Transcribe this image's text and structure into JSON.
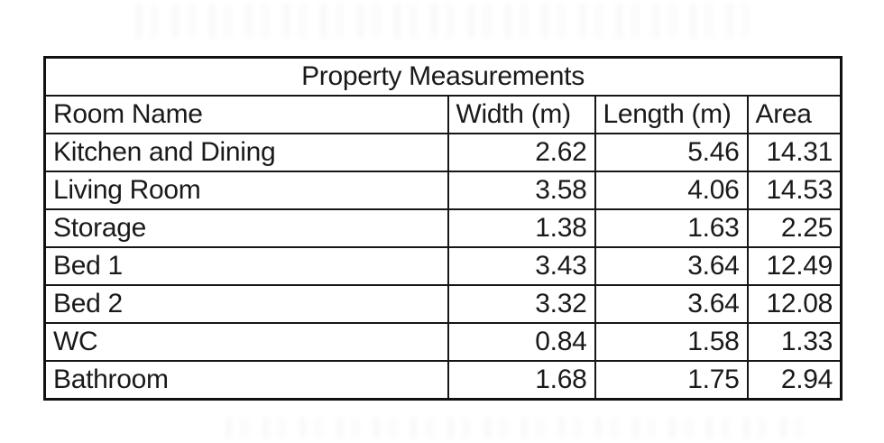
{
  "table": {
    "title": "Property Measurements",
    "columns": [
      "Room Name",
      "Width (m)",
      "Length (m)",
      "Area"
    ],
    "rows": [
      {
        "name": "Kitchen and Dining",
        "width": "2.62",
        "length": "5.46",
        "area": "14.31"
      },
      {
        "name": "Living Room",
        "width": "3.58",
        "length": "4.06",
        "area": "14.53"
      },
      {
        "name": "Storage",
        "width": "1.38",
        "length": "1.63",
        "area": "2.25"
      },
      {
        "name": "Bed 1",
        "width": "3.43",
        "length": "3.64",
        "area": "12.49"
      },
      {
        "name": "Bed 2",
        "width": "3.32",
        "length": "3.64",
        "area": "12.08"
      },
      {
        "name": "WC",
        "width": "0.84",
        "length": "1.58",
        "area": "1.33"
      },
      {
        "name": "Bathroom",
        "width": "1.68",
        "length": "1.75",
        "area": "2.94"
      }
    ],
    "colors": {
      "outer_border": "#111111",
      "inner_border": "#161616",
      "text": "#1a1a1a",
      "background": "#ffffff"
    }
  },
  "chart_data": {
    "type": "table",
    "title": "Property Measurements",
    "columns": [
      "Room Name",
      "Width (m)",
      "Length (m)",
      "Area"
    ],
    "rows": [
      [
        "Kitchen and Dining",
        2.62,
        5.46,
        14.31
      ],
      [
        "Living Room",
        3.58,
        4.06,
        14.53
      ],
      [
        "Storage",
        1.38,
        1.63,
        2.25
      ],
      [
        "Bed 1",
        3.43,
        3.64,
        12.49
      ],
      [
        "Bed 2",
        3.32,
        3.64,
        12.08
      ],
      [
        "WC",
        0.84,
        1.58,
        1.33
      ],
      [
        "Bathroom",
        1.68,
        1.75,
        2.94
      ]
    ]
  }
}
